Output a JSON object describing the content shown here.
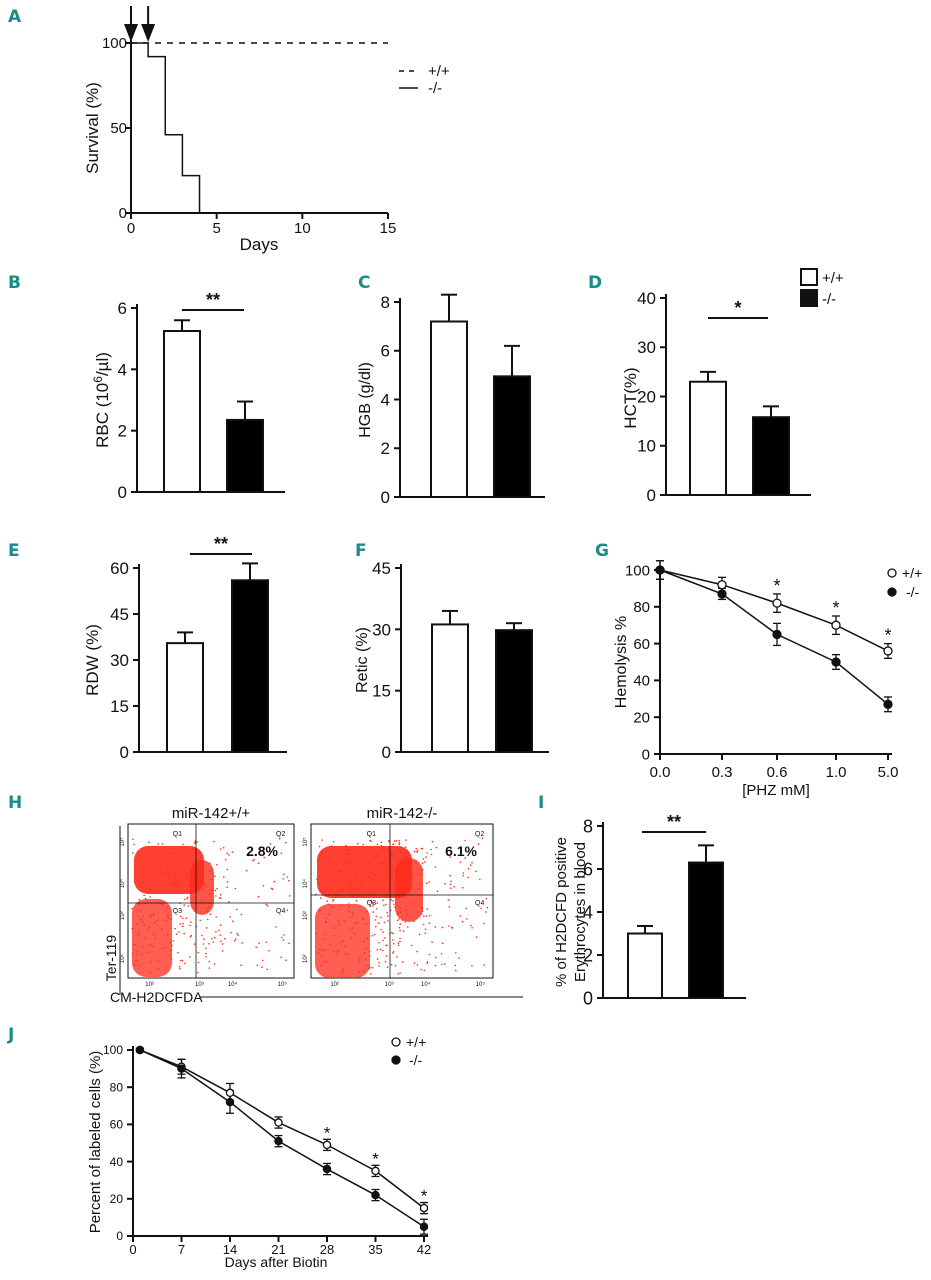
{
  "colors": {
    "panel_letter": "#1a8a8a",
    "ink": "#111111",
    "flow_dots": "#ff2a1a",
    "bar_fill_wt": "#ffffff",
    "bar_fill_ko": "#000000"
  },
  "panels": {
    "A": {
      "letter": "A"
    },
    "B": {
      "letter": "B"
    },
    "C": {
      "letter": "C"
    },
    "D": {
      "letter": "D"
    },
    "E": {
      "letter": "E"
    },
    "F": {
      "letter": "F"
    },
    "G": {
      "letter": "G"
    },
    "H": {
      "letter": "H"
    },
    "I": {
      "letter": "I"
    },
    "J": {
      "letter": "J"
    }
  },
  "chart_data": [
    {
      "id": "A",
      "type": "line",
      "xlabel": "Days",
      "ylabel": "Survival (%)",
      "xlim": [
        0,
        15
      ],
      "ylim": [
        0,
        100
      ],
      "xticks": [
        0,
        5,
        10,
        15
      ],
      "yticks": [
        0,
        50,
        100
      ],
      "arrows_at_days": [
        0,
        1
      ],
      "legend": [
        {
          "name": "+/+",
          "style": "dashed"
        },
        {
          "name": "-/-",
          "style": "solid"
        }
      ],
      "series": [
        {
          "name": "+/+",
          "step": true,
          "x": [
            0,
            15
          ],
          "y": [
            100,
            100
          ]
        },
        {
          "name": "-/-",
          "step": true,
          "x": [
            0,
            1,
            2,
            3,
            4
          ],
          "y": [
            100,
            92,
            46,
            22,
            0
          ]
        }
      ]
    },
    {
      "id": "B",
      "type": "bar",
      "ylabel_pre": "RBC (10",
      "ylabel_sup": "6",
      "ylabel_post": "/µl)",
      "ylim": [
        0,
        6
      ],
      "yticks": [
        0,
        2,
        4,
        6
      ],
      "categories": [
        "+/+",
        "-/-"
      ],
      "values": [
        5.25,
        2.35
      ],
      "errors": [
        0.35,
        0.6
      ],
      "significance": "**"
    },
    {
      "id": "C",
      "type": "bar",
      "ylabel": "HGB (g/dl)",
      "ylim": [
        0,
        8
      ],
      "yticks": [
        0,
        2,
        4,
        6,
        8
      ],
      "categories": [
        "+/+",
        "-/-"
      ],
      "values": [
        7.2,
        4.95
      ],
      "errors": [
        1.1,
        1.25
      ],
      "significance": ""
    },
    {
      "id": "D",
      "type": "bar",
      "ylabel": "HCT(%)",
      "ylim": [
        0,
        40
      ],
      "yticks": [
        0,
        10,
        20,
        30,
        40
      ],
      "categories": [
        "+/+",
        "-/-"
      ],
      "values": [
        23.0,
        15.8
      ],
      "errors": [
        2.0,
        2.2
      ],
      "significance": "*",
      "legend": [
        {
          "name": "+/+",
          "fill": "white"
        },
        {
          "name": "-/-",
          "fill": "black"
        }
      ]
    },
    {
      "id": "E",
      "type": "bar",
      "ylabel": "RDW (%)",
      "ylim": [
        0,
        60
      ],
      "yticks": [
        0,
        15,
        30,
        45,
        60
      ],
      "categories": [
        "+/+",
        "-/-"
      ],
      "values": [
        35.5,
        56.0
      ],
      "errors": [
        3.5,
        5.5
      ],
      "significance": "**"
    },
    {
      "id": "F",
      "type": "bar",
      "ylabel": "Retic (%)",
      "ylim": [
        0,
        45
      ],
      "yticks": [
        0,
        15,
        30,
        45
      ],
      "categories": [
        "+/+",
        "-/-"
      ],
      "values": [
        31.2,
        29.8
      ],
      "errors": [
        3.3,
        1.7
      ],
      "significance": ""
    },
    {
      "id": "G",
      "type": "line",
      "xlabel": "[PHZ mM]",
      "ylabel": "Hemolysis %",
      "categories": [
        "0.0",
        "0.3",
        "0.6",
        "1.0",
        "5.0"
      ],
      "ylim": [
        0,
        100
      ],
      "yticks": [
        0,
        20,
        40,
        60,
        80,
        100
      ],
      "legend": [
        {
          "name": "+/+",
          "marker": "open"
        },
        {
          "name": "-/-",
          "marker": "filled"
        }
      ],
      "series": [
        {
          "name": "+/+",
          "values": [
            100,
            92,
            82,
            70,
            56
          ],
          "errors": [
            5,
            4,
            5,
            5,
            4
          ]
        },
        {
          "name": "-/-",
          "values": [
            100,
            87,
            65,
            50,
            27
          ],
          "errors": [
            5,
            3,
            6,
            4,
            4
          ]
        }
      ],
      "stars_at": [
        2,
        3,
        4
      ],
      "star": "*"
    },
    {
      "id": "H",
      "type": "scatter",
      "subtype": "flow-cytometry",
      "xlabel": "CM-H2DCFDA",
      "ylabel": "Ter-119",
      "plots": [
        {
          "title": "miR-142+/+",
          "q2_percent": "2.8%"
        },
        {
          "title": "miR-142-/-",
          "q2_percent": "6.1%"
        }
      ],
      "quadrants": [
        "Q1",
        "Q2",
        "Q3",
        "Q4"
      ],
      "x_tick_labels": [
        "10²",
        "10³",
        "10⁴",
        "10⁵"
      ],
      "y_tick_labels": [
        "10²",
        "10³",
        "10⁴",
        "10⁵"
      ]
    },
    {
      "id": "I",
      "type": "bar",
      "ylabel_line1": "% of H2DCFD positive",
      "ylabel_line2": "Erythrocytes in blood",
      "ylim": [
        0,
        8
      ],
      "yticks": [
        0,
        2,
        4,
        6,
        8
      ],
      "categories": [
        "+/+",
        "-/-"
      ],
      "values": [
        3.0,
        6.3
      ],
      "errors": [
        0.35,
        0.8
      ],
      "significance": "**"
    },
    {
      "id": "J",
      "type": "line",
      "xlabel": "Days after Biotin",
      "ylabel": "Percent of labeled cells (%)",
      "x": [
        1,
        7,
        14,
        21,
        28,
        35,
        42
      ],
      "xticks": [
        0,
        7,
        14,
        21,
        28,
        35,
        42
      ],
      "xlim": [
        0,
        42
      ],
      "ylim": [
        0,
        100
      ],
      "yticks": [
        0,
        20,
        40,
        60,
        80,
        100
      ],
      "legend": [
        {
          "name": "+/+",
          "marker": "open"
        },
        {
          "name": "-/-",
          "marker": "filled"
        }
      ],
      "series": [
        {
          "name": "+/+",
          "values": [
            100,
            91,
            77,
            61,
            49,
            35,
            15
          ],
          "errors": [
            1,
            4,
            5,
            3,
            3,
            3,
            3
          ]
        },
        {
          "name": "-/-",
          "values": [
            100,
            90,
            72,
            51,
            36,
            22,
            5
          ],
          "errors": [
            1,
            5,
            6,
            3,
            3,
            3,
            4
          ]
        }
      ],
      "stars_at": [
        4,
        5,
        6
      ],
      "star": "*"
    }
  ]
}
